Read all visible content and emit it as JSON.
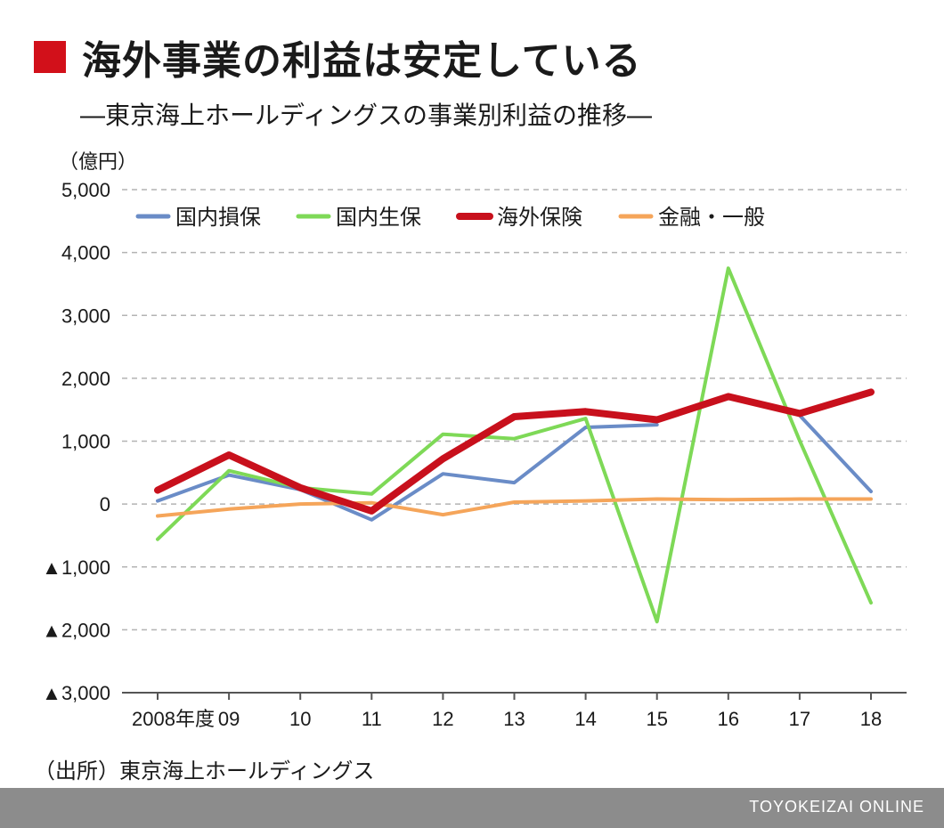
{
  "header": {
    "title": "海外事業の利益は安定している",
    "subtitle": "―東京海上ホールディングスの事業別利益の推移―"
  },
  "source": "（出所）東京海上ホールディングス",
  "footer": {
    "brand": "TOYOKEIZAI ONLINE"
  },
  "colors": {
    "title_square": "#d2101a",
    "footer_bar": "#8c8c8c"
  },
  "chart_data": {
    "type": "line",
    "title": "",
    "xlabel": "",
    "ylabel": "",
    "unit_label": "（億円）",
    "categories": [
      "2008年度",
      "09",
      "10",
      "11",
      "12",
      "13",
      "14",
      "15",
      "16",
      "17",
      "18"
    ],
    "ylim": [
      -3000,
      5000
    ],
    "yticks": [
      5000,
      4000,
      3000,
      2000,
      1000,
      0,
      -1000,
      -2000,
      -3000
    ],
    "ytick_labels": [
      "5,000",
      "4,000",
      "3,000",
      "2,000",
      "1,000",
      "0",
      "▲1,000",
      "▲2,000",
      "▲3,000"
    ],
    "grid": true,
    "legend_position": "top",
    "series": [
      {
        "name": "国内損保",
        "color": "#6a8cc7",
        "values": [
          50,
          460,
          230,
          -250,
          480,
          340,
          1220,
          1260,
          null,
          1410,
          200
        ]
      },
      {
        "name": "国内生保",
        "color": "#7ed957",
        "values": [
          -560,
          530,
          260,
          160,
          1110,
          1040,
          1360,
          -1870,
          3750,
          1010,
          -1570
        ]
      },
      {
        "name": "海外保険",
        "color": "#c8101c",
        "values": [
          220,
          780,
          260,
          -110,
          720,
          1390,
          1470,
          1340,
          1710,
          1440,
          1780
        ]
      },
      {
        "name": "金融・一般",
        "color": "#f5a55a",
        "values": [
          -190,
          -80,
          0,
          20,
          -170,
          30,
          50,
          80,
          70,
          80,
          80
        ]
      }
    ]
  }
}
